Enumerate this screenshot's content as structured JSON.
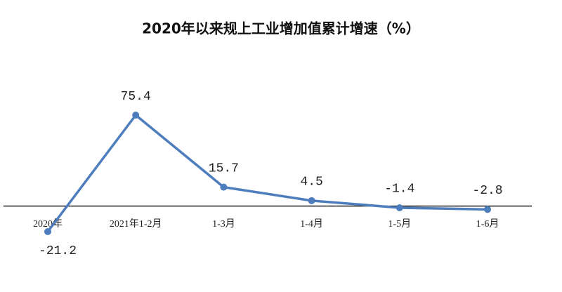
{
  "chart_data": {
    "type": "line",
    "title": "2020年以来规上工业增加值累计增速（%）",
    "categories": [
      "2020年",
      "2021年1-2月",
      "1-3月",
      "1-4月",
      "1-5月",
      "1-6月"
    ],
    "series": [
      {
        "name": "规上工业增加值累计增速",
        "color": "#4e7dbd",
        "values": [
          -21.2,
          75.4,
          15.7,
          4.5,
          -1.4,
          -2.8
        ]
      }
    ]
  }
}
